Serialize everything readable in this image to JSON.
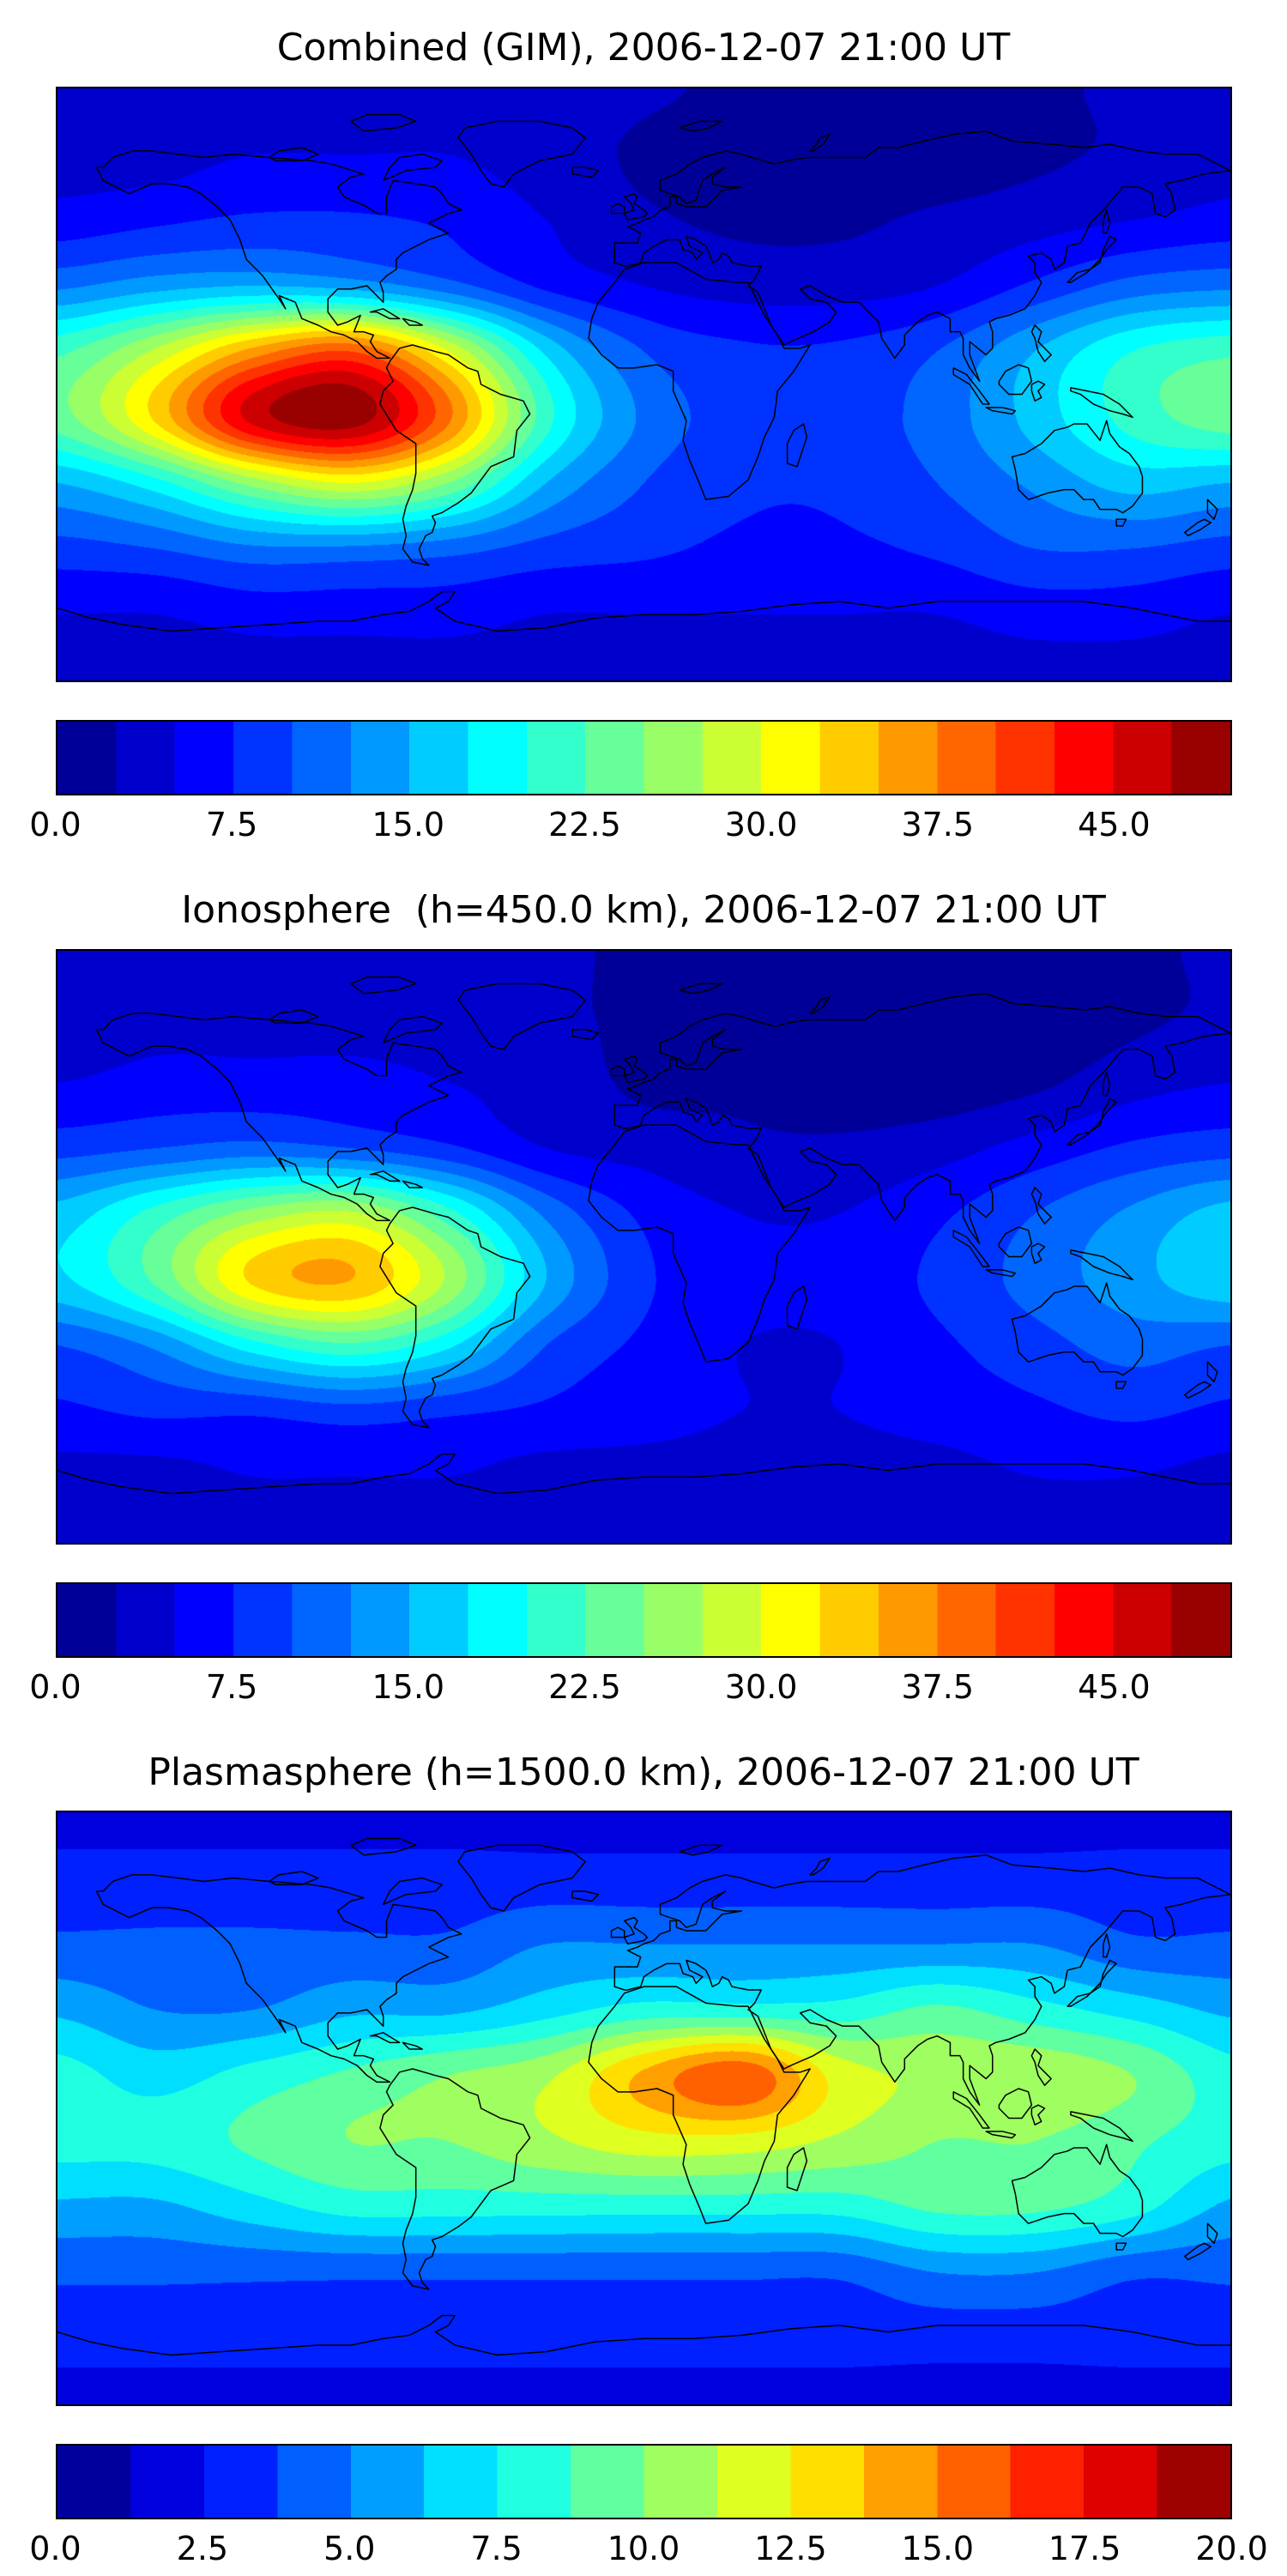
{
  "chart_data": [
    {
      "type": "heatmap",
      "title": "Combined (GIM), 2006-12-07 21:00 UT",
      "subtitle": "",
      "colormap": "jet",
      "projection": "equirectangular",
      "grid": "off",
      "legend_position": "colorbar-bottom",
      "xlabel": "",
      "ylabel": "",
      "lon_range": [
        -180,
        180
      ],
      "lat_range": [
        -90,
        90
      ],
      "lon": [
        -180,
        -150,
        -120,
        -90,
        -60,
        -30,
        0,
        30,
        60,
        90,
        120,
        150,
        180
      ],
      "lat": [
        90,
        70,
        50,
        30,
        10,
        -10,
        -30,
        -50,
        -70,
        -90
      ],
      "values": [
        [
          3,
          3,
          3,
          3,
          4,
          4,
          3,
          2,
          2,
          2,
          2,
          3,
          3
        ],
        [
          4,
          4,
          5,
          5,
          5,
          4,
          2,
          1,
          1,
          1,
          2,
          3,
          4
        ],
        [
          6,
          7,
          8,
          8,
          7,
          5,
          3,
          2,
          2,
          3,
          4,
          5,
          6
        ],
        [
          12,
          14,
          15,
          14,
          11,
          7,
          5,
          4,
          4,
          5,
          8,
          11,
          12
        ],
        [
          22,
          28,
          36,
          40,
          30,
          17,
          10,
          8,
          8,
          10,
          15,
          20,
          22
        ],
        [
          24,
          33,
          46,
          49,
          38,
          21,
          12,
          9,
          9,
          11,
          16,
          21,
          24
        ],
        [
          15,
          19,
          26,
          30,
          25,
          15,
          10,
          8,
          8,
          10,
          13,
          16,
          15
        ],
        [
          9,
          10,
          12,
          12,
          11,
          9,
          8,
          7,
          7,
          8,
          10,
          10,
          9
        ],
        [
          5,
          5,
          6,
          6,
          6,
          5,
          5,
          5,
          5,
          5,
          6,
          6,
          5
        ],
        [
          4,
          4,
          4,
          4,
          4,
          4,
          4,
          4,
          4,
          4,
          4,
          4,
          4
        ]
      ],
      "levels_min": 0,
      "levels_max": 50,
      "levels_step": 2.5,
      "colorbar_tick_values": [
        0,
        7.5,
        15,
        22.5,
        30,
        37.5,
        45
      ],
      "colorbar_tick_labels": [
        "0.0",
        "7.5",
        "15.0",
        "22.5",
        "30.0",
        "37.5",
        "45.0"
      ]
    },
    {
      "type": "heatmap",
      "title": "Ionosphere  (h=450.0 km), 2006-12-07 21:00 UT",
      "subtitle": "",
      "colormap": "jet",
      "projection": "equirectangular",
      "grid": "off",
      "legend_position": "colorbar-bottom",
      "xlabel": "",
      "ylabel": "",
      "lon_range": [
        -180,
        180
      ],
      "lat_range": [
        -90,
        90
      ],
      "lon": [
        -180,
        -150,
        -120,
        -90,
        -60,
        -30,
        0,
        30,
        60,
        90,
        120,
        150,
        180
      ],
      "lat": [
        90,
        70,
        50,
        30,
        10,
        -10,
        -30,
        -50,
        -70,
        -90
      ],
      "values": [
        [
          3,
          3,
          3,
          3,
          3,
          3,
          2,
          2,
          1,
          1,
          2,
          2,
          3
        ],
        [
          3,
          4,
          4,
          4,
          4,
          3,
          2,
          1,
          1,
          1,
          1,
          2,
          3
        ],
        [
          5,
          6,
          6,
          6,
          5,
          4,
          2,
          2,
          1,
          1,
          2,
          4,
          5
        ],
        [
          9,
          10,
          11,
          10,
          8,
          5,
          4,
          3,
          3,
          4,
          6,
          8,
          9
        ],
        [
          16,
          21,
          26,
          28,
          21,
          12,
          7,
          5,
          5,
          7,
          10,
          13,
          16
        ],
        [
          17,
          23,
          33,
          35,
          27,
          15,
          8,
          6,
          6,
          8,
          11,
          14,
          17
        ],
        [
          10,
          13,
          19,
          22,
          18,
          10,
          7,
          5,
          5,
          7,
          9,
          11,
          10
        ],
        [
          7,
          8,
          8,
          9,
          8,
          7,
          6,
          5,
          5,
          6,
          7,
          8,
          7
        ],
        [
          4,
          4,
          5,
          5,
          5,
          4,
          4,
          4,
          4,
          4,
          5,
          5,
          4
        ],
        [
          3,
          3,
          3,
          3,
          3,
          3,
          3,
          3,
          3,
          3,
          3,
          3,
          3
        ]
      ],
      "levels_min": 0,
      "levels_max": 50,
      "levels_step": 2.5,
      "colorbar_tick_values": [
        0,
        7.5,
        15,
        22.5,
        30,
        37.5,
        45
      ],
      "colorbar_tick_labels": [
        "0.0",
        "7.5",
        "15.0",
        "22.5",
        "30.0",
        "37.5",
        "45.0"
      ]
    },
    {
      "type": "heatmap",
      "title": "Plasmasphere (h=1500.0 km), 2006-12-07 21:00 UT",
      "subtitle": "",
      "colormap": "jet",
      "projection": "equirectangular",
      "grid": "off",
      "legend_position": "colorbar-bottom",
      "xlabel": "",
      "ylabel": "",
      "lon_range": [
        -180,
        180
      ],
      "lat_range": [
        -90,
        90
      ],
      "lon": [
        -180,
        -150,
        -120,
        -90,
        -60,
        -30,
        0,
        30,
        60,
        90,
        120,
        150,
        180
      ],
      "lat": [
        90,
        70,
        50,
        30,
        10,
        -10,
        -30,
        -50,
        -70,
        -90
      ],
      "values": [
        [
          2,
          2,
          2,
          2,
          2,
          2,
          2,
          2,
          2,
          2,
          2,
          2,
          2
        ],
        [
          3,
          3,
          3,
          3,
          3,
          3,
          3,
          3,
          3,
          3,
          3,
          3,
          3
        ],
        [
          4,
          4,
          4,
          4,
          4,
          5,
          5,
          5,
          5,
          5,
          5,
          4,
          4
        ],
        [
          6,
          5,
          5,
          6,
          6,
          7,
          8,
          8,
          8,
          9,
          8,
          7,
          6
        ],
        [
          8,
          7,
          8,
          9,
          10,
          11,
          14,
          16,
          12,
          11,
          11,
          10,
          8
        ],
        [
          8,
          8,
          9,
          10,
          10,
          11,
          12,
          12,
          11,
          10,
          10,
          9,
          8
        ],
        [
          6,
          6,
          7,
          8,
          8,
          8,
          8,
          8,
          8,
          9,
          9,
          8,
          6
        ],
        [
          4,
          4,
          4,
          4,
          4,
          4,
          4,
          4,
          4,
          5,
          5,
          4,
          4
        ],
        [
          3,
          3,
          3,
          3,
          3,
          3,
          3,
          3,
          3,
          3,
          3,
          3,
          3
        ],
        [
          2,
          2,
          2,
          2,
          2,
          2,
          2,
          2,
          2,
          2,
          2,
          2,
          2
        ]
      ],
      "levels_min": 0,
      "levels_max": 20,
      "levels_step": 1.25,
      "colorbar_tick_values": [
        0,
        2.5,
        5,
        7.5,
        10,
        12.5,
        15,
        17.5,
        20
      ],
      "colorbar_tick_labels": [
        "0.0",
        "2.5",
        "5.0",
        "7.5",
        "10.0",
        "12.5",
        "15.0",
        "17.5",
        "20.0"
      ]
    }
  ]
}
